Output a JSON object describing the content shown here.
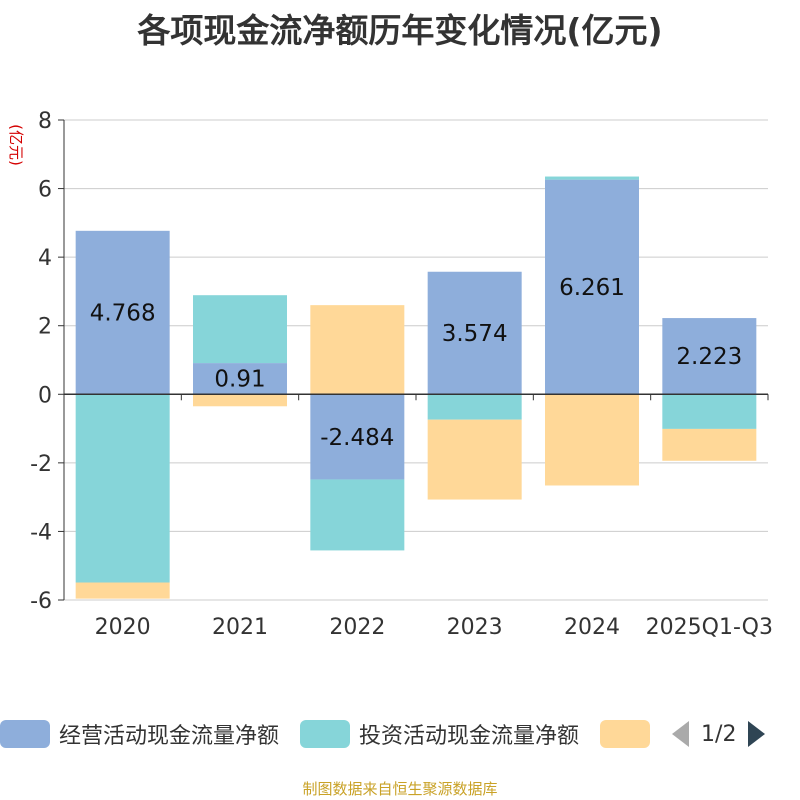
{
  "chart_data": {
    "type": "bar",
    "stacked": true,
    "title": "各项现金流净额历年变化情况(亿元)",
    "ylabel": "(亿元)",
    "xlabel": "",
    "ylim": [
      -6,
      8
    ],
    "yticks": [
      -6,
      -4,
      -2,
      0,
      2,
      4,
      6,
      8
    ],
    "grid": true,
    "categories": [
      "2020",
      "2021",
      "2022",
      "2023",
      "2024",
      "2025Q1-Q3"
    ],
    "series": [
      {
        "name": "经营活动现金流量净额",
        "color": "#8eaedb",
        "values": [
          4.768,
          0.91,
          -2.484,
          3.574,
          6.261,
          2.223
        ],
        "show_labels": true
      },
      {
        "name": "投资活动现金流量净额",
        "color": "#86d5d9",
        "values": [
          -5.49,
          1.98,
          -2.07,
          -0.74,
          0.09,
          -1.01
        ],
        "show_labels": false
      },
      {
        "name": "",
        "color": "#ffd898",
        "values": [
          -0.47,
          -0.35,
          2.6,
          -2.33,
          -2.66,
          -0.93
        ],
        "show_labels": false
      }
    ],
    "legend_position": "bottom",
    "legend_page": "1/2",
    "source": "制图数据来自恒生聚源数据库"
  }
}
